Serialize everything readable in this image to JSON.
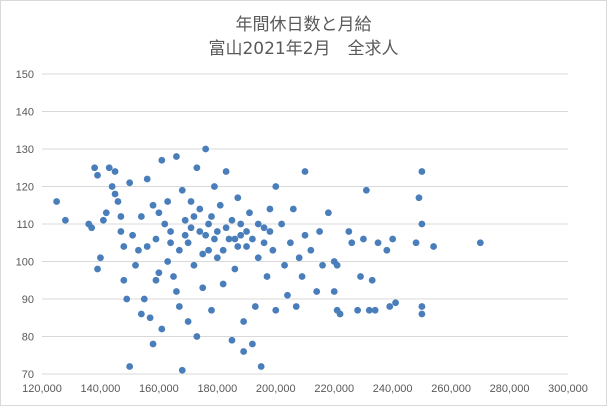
{
  "chart_data": {
    "type": "scatter",
    "title": "年間休日数と月給",
    "subtitle": "富山2021年2月　全求人",
    "xlabel": "",
    "ylabel": "",
    "xlim": [
      120000,
      300000
    ],
    "ylim": [
      70,
      150
    ],
    "x_ticks": [
      "120,000",
      "140,000",
      "160,000",
      "180,000",
      "200,000",
      "220,000",
      "240,000",
      "260,000",
      "280,000",
      "300,000"
    ],
    "y_ticks": [
      "70",
      "80",
      "90",
      "100",
      "110",
      "120",
      "130",
      "140",
      "150"
    ],
    "grid": "horizontal",
    "legend": "none",
    "marker_color": "#4a7ebb",
    "series": [
      {
        "points": [
          [
            125000,
            116
          ],
          [
            128000,
            111
          ],
          [
            136000,
            110
          ],
          [
            137000,
            109
          ],
          [
            138000,
            125
          ],
          [
            139000,
            123
          ],
          [
            139000,
            98
          ],
          [
            140000,
            101
          ],
          [
            141000,
            111
          ],
          [
            142000,
            113
          ],
          [
            143000,
            125
          ],
          [
            144000,
            120
          ],
          [
            145000,
            124
          ],
          [
            145000,
            118
          ],
          [
            146000,
            116
          ],
          [
            147000,
            112
          ],
          [
            147000,
            108
          ],
          [
            148000,
            104
          ],
          [
            148000,
            95
          ],
          [
            149000,
            90
          ],
          [
            150000,
            72
          ],
          [
            150000,
            121
          ],
          [
            151000,
            107
          ],
          [
            152000,
            99
          ],
          [
            153000,
            103
          ],
          [
            154000,
            86
          ],
          [
            155000,
            90
          ],
          [
            156000,
            122
          ],
          [
            157000,
            85
          ],
          [
            158000,
            78
          ],
          [
            158000,
            115
          ],
          [
            159000,
            95
          ],
          [
            160000,
            113
          ],
          [
            161000,
            127
          ],
          [
            161000,
            82
          ],
          [
            162000,
            110
          ],
          [
            163000,
            100
          ],
          [
            164000,
            108
          ],
          [
            165000,
            96
          ],
          [
            166000,
            128
          ],
          [
            166000,
            92
          ],
          [
            167000,
            88
          ],
          [
            168000,
            71
          ],
          [
            168000,
            119
          ],
          [
            169000,
            111
          ],
          [
            170000,
            105
          ],
          [
            170000,
            84
          ],
          [
            171000,
            116
          ],
          [
            172000,
            99
          ],
          [
            173000,
            80
          ],
          [
            173000,
            125
          ],
          [
            174000,
            108
          ],
          [
            175000,
            93
          ],
          [
            176000,
            130
          ],
          [
            177000,
            103
          ],
          [
            178000,
            112
          ],
          [
            178000,
            87
          ],
          [
            179000,
            120
          ],
          [
            180000,
            101
          ],
          [
            181000,
            115
          ],
          [
            182000,
            94
          ],
          [
            183000,
            124
          ],
          [
            184000,
            106
          ],
          [
            185000,
            79
          ],
          [
            186000,
            98
          ],
          [
            187000,
            117
          ],
          [
            188000,
            110
          ],
          [
            189000,
            84
          ],
          [
            189000,
            76
          ],
          [
            190000,
            104
          ],
          [
            191000,
            113
          ],
          [
            192000,
            78
          ],
          [
            193000,
            88
          ],
          [
            194000,
            101
          ],
          [
            195000,
            72
          ],
          [
            196000,
            109
          ],
          [
            197000,
            96
          ],
          [
            198000,
            114
          ],
          [
            199000,
            103
          ],
          [
            200000,
            87
          ],
          [
            200000,
            120
          ],
          [
            202000,
            110
          ],
          [
            203000,
            99
          ],
          [
            204000,
            91
          ],
          [
            205000,
            105
          ],
          [
            206000,
            114
          ],
          [
            207000,
            88
          ],
          [
            208000,
            101
          ],
          [
            209000,
            96
          ],
          [
            210000,
            124
          ],
          [
            210000,
            107
          ],
          [
            212000,
            103
          ],
          [
            214000,
            92
          ],
          [
            215000,
            108
          ],
          [
            216000,
            99
          ],
          [
            218000,
            113
          ],
          [
            220000,
            100
          ],
          [
            220000,
            92
          ],
          [
            221000,
            99
          ],
          [
            221000,
            87
          ],
          [
            222000,
            86
          ],
          [
            225000,
            108
          ],
          [
            226000,
            105
          ],
          [
            228000,
            87
          ],
          [
            229000,
            96
          ],
          [
            230000,
            106
          ],
          [
            231000,
            119
          ],
          [
            232000,
            87
          ],
          [
            233000,
            95
          ],
          [
            234000,
            87
          ],
          [
            235000,
            105
          ],
          [
            238000,
            103
          ],
          [
            239000,
            88
          ],
          [
            240000,
            106
          ],
          [
            241000,
            89
          ],
          [
            248000,
            105
          ],
          [
            249000,
            117
          ],
          [
            250000,
            124
          ],
          [
            250000,
            110
          ],
          [
            250000,
            88
          ],
          [
            250000,
            86
          ],
          [
            254000,
            104
          ],
          [
            270000,
            105
          ],
          [
            154000,
            112
          ],
          [
            156000,
            104
          ],
          [
            159000,
            106
          ],
          [
            160000,
            97
          ],
          [
            163000,
            116
          ],
          [
            164000,
            105
          ],
          [
            167000,
            103
          ],
          [
            169000,
            107
          ],
          [
            171000,
            109
          ],
          [
            172000,
            112
          ],
          [
            174000,
            114
          ],
          [
            175000,
            102
          ],
          [
            176000,
            107
          ],
          [
            177000,
            110
          ],
          [
            179000,
            106
          ],
          [
            180000,
            108
          ],
          [
            182000,
            103
          ],
          [
            183000,
            109
          ],
          [
            185000,
            111
          ],
          [
            186000,
            106
          ],
          [
            187000,
            104
          ],
          [
            188000,
            107
          ],
          [
            190000,
            108
          ],
          [
            192000,
            106
          ],
          [
            194000,
            110
          ],
          [
            196000,
            105
          ],
          [
            198000,
            108
          ]
        ]
      }
    ]
  }
}
